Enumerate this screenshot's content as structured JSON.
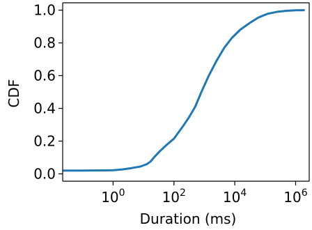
{
  "chart_data": {
    "type": "line",
    "title": "",
    "xlabel": "Duration (ms)",
    "ylabel": "CDF",
    "x_scale": "log",
    "xlim": [
      0.022,
      2800000
    ],
    "ylim": [
      -0.045,
      1.045
    ],
    "grid": false,
    "x_ticks": [
      {
        "value": 1,
        "base": "10",
        "exp": "0"
      },
      {
        "value": 100,
        "base": "10",
        "exp": "2"
      },
      {
        "value": 10000,
        "base": "10",
        "exp": "4"
      },
      {
        "value": 1000000,
        "base": "10",
        "exp": "6"
      }
    ],
    "y_ticks": [
      {
        "value": 0.0,
        "label": "0.0"
      },
      {
        "value": 0.2,
        "label": "0.2"
      },
      {
        "value": 0.4,
        "label": "0.4"
      },
      {
        "value": 0.6,
        "label": "0.6"
      },
      {
        "value": 0.8,
        "label": "0.8"
      },
      {
        "value": 1.0,
        "label": "1.0"
      }
    ],
    "series": [
      {
        "color": "#1f77b4",
        "x": [
          0.022,
          0.1,
          0.5,
          1,
          2,
          4,
          8,
          13,
          17,
          22,
          35,
          60,
          100,
          180,
          300,
          500,
          800,
          1400,
          2500,
          4500,
          8000,
          15000,
          30000,
          60000,
          120000,
          250000,
          500000,
          1000000,
          2000000
        ],
        "y": [
          0.02,
          0.02,
          0.021,
          0.022,
          0.027,
          0.035,
          0.045,
          0.06,
          0.075,
          0.1,
          0.14,
          0.18,
          0.215,
          0.28,
          0.34,
          0.41,
          0.5,
          0.6,
          0.69,
          0.77,
          0.83,
          0.88,
          0.92,
          0.955,
          0.978,
          0.99,
          0.996,
          0.999,
          1.0
        ]
      }
    ]
  }
}
